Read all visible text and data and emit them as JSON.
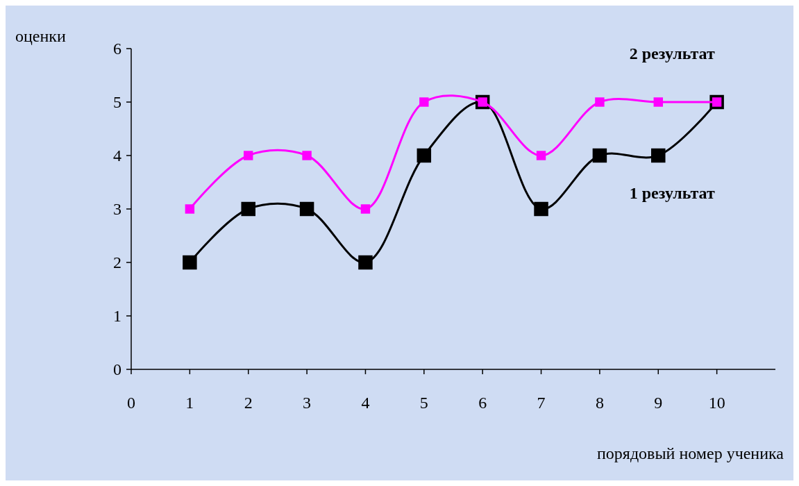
{
  "chart_data": {
    "type": "line",
    "xlabel": "порядовый номер ученика",
    "ylabel": "оценки",
    "x": [
      1,
      2,
      3,
      4,
      5,
      6,
      7,
      8,
      9,
      10
    ],
    "xlim": [
      0,
      11
    ],
    "xticks": [
      0,
      1,
      2,
      3,
      4,
      5,
      6,
      7,
      8,
      9,
      10
    ],
    "ylim": [
      0,
      6
    ],
    "yticks": [
      0,
      1,
      2,
      3,
      4,
      5,
      6
    ],
    "marker": "square",
    "grid": false,
    "series": [
      {
        "name": "1 результат",
        "color": "#000000",
        "values": [
          2,
          3,
          3,
          2,
          4,
          5,
          3,
          4,
          4,
          5
        ]
      },
      {
        "name": "2 результат",
        "color": "#ff00ff",
        "values": [
          3,
          4,
          4,
          3,
          5,
          5,
          4,
          5,
          5,
          5
        ]
      }
    ]
  }
}
